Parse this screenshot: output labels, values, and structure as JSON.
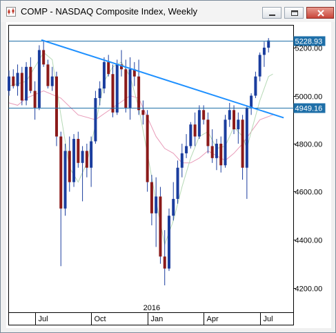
{
  "window": {
    "title": "COMP - NASDAQ Composite Index, Weekly",
    "title_icon": "candlestick-chart-icon",
    "buttons": [
      "minimize-icon",
      "maximize-icon",
      "close-icon"
    ]
  },
  "chart_data": {
    "type": "candlestick",
    "title": "",
    "symbol": "COMP",
    "interval": "Weekly",
    "xlabel": "",
    "ylabel": "",
    "yaxis_position": "right",
    "ylim": [
      4140,
      5290
    ],
    "y_ticks": [
      4200,
      4400,
      4600,
      4800,
      5000,
      5200
    ],
    "y_tick_labels": [
      "4200.00",
      "4400.00",
      "4600.00",
      "4800.00",
      "5000.00",
      "5200.00"
    ],
    "x_month_labels": [
      {
        "label": "Jul",
        "week": 6
      },
      {
        "label": "Oct",
        "week": 19
      },
      {
        "label": "Jan",
        "week": 32
      },
      {
        "label": "Apr",
        "week": 45
      },
      {
        "label": "Jul",
        "week": 58
      }
    ],
    "x_year_label": {
      "label": "2016",
      "week": 32
    },
    "colors": {
      "up": "#1a3d9e",
      "down": "#8b1a1a",
      "trendline": "#1e90ff",
      "price_line": "#1e6fa8",
      "ma_fast": "#b5d9b5",
      "ma_slow": "#e89ab8"
    },
    "weeks": 67,
    "ohlc": [
      {
        "o": 5020,
        "h": 5105,
        "l": 5000,
        "c": 5080
      },
      {
        "o": 5080,
        "h": 5110,
        "l": 5030,
        "c": 5040
      },
      {
        "o": 5040,
        "h": 5130,
        "l": 5000,
        "c": 5095
      },
      {
        "o": 5095,
        "h": 5120,
        "l": 4960,
        "c": 4980
      },
      {
        "o": 4980,
        "h": 5140,
        "l": 4960,
        "c": 5120
      },
      {
        "o": 5120,
        "h": 5160,
        "l": 5010,
        "c": 5020
      },
      {
        "o": 5020,
        "h": 5060,
        "l": 4900,
        "c": 4950
      },
      {
        "o": 4950,
        "h": 5210,
        "l": 4940,
        "c": 5190
      },
      {
        "o": 5190,
        "h": 5232,
        "l": 5120,
        "c": 5130
      },
      {
        "o": 5130,
        "h": 5150,
        "l": 5030,
        "c": 5040
      },
      {
        "o": 5040,
        "h": 5120,
        "l": 5020,
        "c": 5080
      },
      {
        "o": 5080,
        "h": 5100,
        "l": 4790,
        "c": 4830
      },
      {
        "o": 4830,
        "h": 4850,
        "l": 4290,
        "c": 4530
      },
      {
        "o": 4530,
        "h": 4800,
        "l": 4500,
        "c": 4770
      },
      {
        "o": 4770,
        "h": 4830,
        "l": 4600,
        "c": 4640
      },
      {
        "o": 4640,
        "h": 4840,
        "l": 4620,
        "c": 4820
      },
      {
        "o": 4820,
        "h": 4850,
        "l": 4700,
        "c": 4720
      },
      {
        "o": 4720,
        "h": 4790,
        "l": 4560,
        "c": 4770
      },
      {
        "o": 4770,
        "h": 4800,
        "l": 4660,
        "c": 4700
      },
      {
        "o": 4700,
        "h": 4830,
        "l": 4620,
        "c": 4810
      },
      {
        "o": 4810,
        "h": 5020,
        "l": 4800,
        "c": 4990
      },
      {
        "o": 4990,
        "h": 5060,
        "l": 4960,
        "c": 5030
      },
      {
        "o": 5030,
        "h": 5160,
        "l": 5010,
        "c": 5140
      },
      {
        "o": 5140,
        "h": 5170,
        "l": 5080,
        "c": 5090
      },
      {
        "o": 5090,
        "h": 5130,
        "l": 4910,
        "c": 4930
      },
      {
        "o": 4930,
        "h": 5150,
        "l": 4920,
        "c": 5130
      },
      {
        "o": 5130,
        "h": 5190,
        "l": 5080,
        "c": 5110
      },
      {
        "o": 5110,
        "h": 5150,
        "l": 4930,
        "c": 4950
      },
      {
        "o": 4950,
        "h": 5160,
        "l": 4900,
        "c": 5110
      },
      {
        "o": 5110,
        "h": 5140,
        "l": 5040,
        "c": 5080
      },
      {
        "o": 5080,
        "h": 5150,
        "l": 4920,
        "c": 4940
      },
      {
        "o": 4940,
        "h": 4980,
        "l": 4880,
        "c": 4920
      },
      {
        "o": 4920,
        "h": 4940,
        "l": 4600,
        "c": 4640
      },
      {
        "o": 4640,
        "h": 4670,
        "l": 4460,
        "c": 4510
      },
      {
        "o": 4510,
        "h": 4660,
        "l": 4370,
        "c": 4580
      },
      {
        "o": 4580,
        "h": 4620,
        "l": 4300,
        "c": 4330
      },
      {
        "o": 4330,
        "h": 4440,
        "l": 4210,
        "c": 4280
      },
      {
        "o": 4280,
        "h": 4530,
        "l": 4270,
        "c": 4500
      },
      {
        "o": 4500,
        "h": 4640,
        "l": 4480,
        "c": 4570
      },
      {
        "o": 4570,
        "h": 4730,
        "l": 4550,
        "c": 4700
      },
      {
        "o": 4700,
        "h": 4800,
        "l": 4660,
        "c": 4760
      },
      {
        "o": 4760,
        "h": 4840,
        "l": 4740,
        "c": 4790
      },
      {
        "o": 4790,
        "h": 4890,
        "l": 4780,
        "c": 4880
      },
      {
        "o": 4880,
        "h": 4930,
        "l": 4790,
        "c": 4830
      },
      {
        "o": 4830,
        "h": 4960,
        "l": 4820,
        "c": 4940
      },
      {
        "o": 4940,
        "h": 4960,
        "l": 4880,
        "c": 4900
      },
      {
        "o": 4900,
        "h": 4930,
        "l": 4760,
        "c": 4790
      },
      {
        "o": 4790,
        "h": 4860,
        "l": 4720,
        "c": 4740
      },
      {
        "o": 4740,
        "h": 4820,
        "l": 4690,
        "c": 4800
      },
      {
        "o": 4800,
        "h": 4830,
        "l": 4680,
        "c": 4710
      },
      {
        "o": 4710,
        "h": 4920,
        "l": 4700,
        "c": 4900
      },
      {
        "o": 4900,
        "h": 4970,
        "l": 4870,
        "c": 4940
      },
      {
        "o": 4940,
        "h": 4960,
        "l": 4840,
        "c": 4860
      },
      {
        "o": 4860,
        "h": 4930,
        "l": 4800,
        "c": 4900
      },
      {
        "o": 4900,
        "h": 4920,
        "l": 4650,
        "c": 4700
      },
      {
        "o": 4700,
        "h": 4960,
        "l": 4570,
        "c": 4950
      },
      {
        "o": 4950,
        "h": 5010,
        "l": 4920,
        "c": 5000
      },
      {
        "o": 5000,
        "h": 5100,
        "l": 4990,
        "c": 5080
      },
      {
        "o": 5080,
        "h": 5180,
        "l": 5060,
        "c": 5170
      },
      {
        "o": 5170,
        "h": 5225,
        "l": 5120,
        "c": 5200
      },
      {
        "o": 5200,
        "h": 5240,
        "l": 5180,
        "c": 5230
      }
    ],
    "ma_fast": [
      [
        0,
        5040
      ],
      [
        4,
        5060
      ],
      [
        8,
        5180
      ],
      [
        10,
        5150
      ],
      [
        12,
        4920
      ],
      [
        14,
        4700
      ],
      [
        16,
        4640
      ],
      [
        18,
        4720
      ],
      [
        20,
        4880
      ],
      [
        22,
        5060
      ],
      [
        24,
        5120
      ],
      [
        26,
        5140
      ],
      [
        28,
        5080
      ],
      [
        30,
        4950
      ],
      [
        32,
        4760
      ],
      [
        34,
        4560
      ],
      [
        36,
        4380
      ],
      [
        38,
        4480
      ],
      [
        40,
        4620
      ],
      [
        42,
        4740
      ],
      [
        44,
        4830
      ],
      [
        46,
        4850
      ],
      [
        48,
        4780
      ],
      [
        50,
        4790
      ],
      [
        52,
        4870
      ],
      [
        54,
        4830
      ],
      [
        55,
        4780
      ],
      [
        56,
        4850
      ],
      [
        58,
        4980
      ],
      [
        60,
        5080
      ],
      [
        61,
        5090
      ]
    ],
    "ma_slow": [
      [
        0,
        4970
      ],
      [
        2,
        4960
      ],
      [
        4,
        4990
      ],
      [
        8,
        5020
      ],
      [
        12,
        4990
      ],
      [
        16,
        4920
      ],
      [
        20,
        4900
      ],
      [
        24,
        4950
      ],
      [
        28,
        5000
      ],
      [
        30,
        4990
      ],
      [
        32,
        4910
      ],
      [
        34,
        4830
      ],
      [
        36,
        4780
      ],
      [
        38,
        4760
      ],
      [
        40,
        4720
      ],
      [
        42,
        4720
      ],
      [
        44,
        4740
      ],
      [
        46,
        4770
      ],
      [
        48,
        4750
      ],
      [
        50,
        4730
      ],
      [
        52,
        4760
      ],
      [
        54,
        4800
      ],
      [
        56,
        4850
      ],
      [
        58,
        4900
      ],
      [
        61,
        4920
      ]
    ],
    "trendline": {
      "x1": 7.5,
      "y1": 5232,
      "x2": 63.5,
      "y2": 4908
    },
    "price_lines": [
      {
        "value": 5228.93,
        "label": "5228.93"
      },
      {
        "value": 4949.16,
        "label": "4949.16"
      }
    ]
  }
}
